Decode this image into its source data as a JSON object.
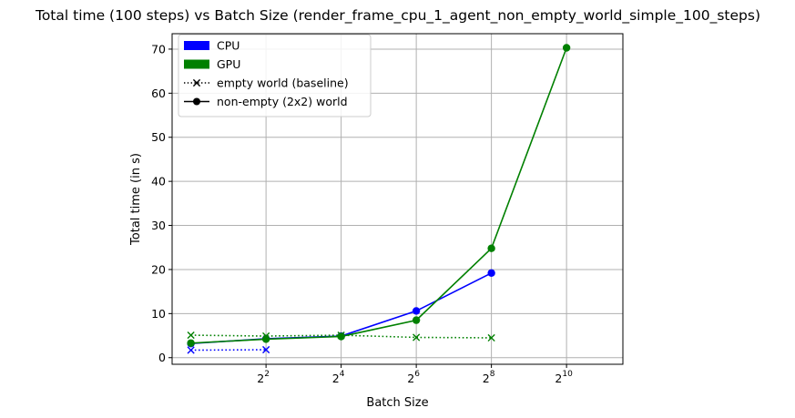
{
  "chart_data": {
    "type": "line",
    "title": "Total time (100 steps) vs Batch Size (render_frame_cpu_1_agent_non_empty_world_simple_100_steps)",
    "xlabel": "Batch Size",
    "ylabel": "Total time (in s)",
    "x_scale": "log2",
    "xlim_log2": [
      -0.5,
      11.5
    ],
    "ylim": [
      -1.5,
      73.5
    ],
    "x_ticks": [
      {
        "base": "2",
        "exp": "2",
        "value": 4
      },
      {
        "base": "2",
        "exp": "4",
        "value": 16
      },
      {
        "base": "2",
        "exp": "6",
        "value": 64
      },
      {
        "base": "2",
        "exp": "8",
        "value": 256
      },
      {
        "base": "2",
        "exp": "10",
        "value": 1024
      }
    ],
    "y_ticks": [
      0,
      10,
      20,
      30,
      40,
      50,
      60,
      70
    ],
    "grid": true,
    "legend_position": "upper-left",
    "legend": [
      {
        "label": "CPU",
        "kind": "patch",
        "color": "#0000ff"
      },
      {
        "label": "GPU",
        "kind": "patch",
        "color": "#008000"
      },
      {
        "label": "empty world (baseline)",
        "kind": "line-x",
        "color": "#000000"
      },
      {
        "label": "non-empty (2x2) world",
        "kind": "line-dot",
        "color": "#000000"
      }
    ],
    "series": [
      {
        "device": "CPU",
        "world": "non-empty",
        "color": "#0000ff",
        "linestyle": "solid",
        "marker": "o",
        "x": [
          1,
          4,
          16,
          64,
          256
        ],
        "y": [
          3.2,
          4.3,
          4.9,
          10.6,
          19.2
        ]
      },
      {
        "device": "GPU",
        "world": "non-empty",
        "color": "#008000",
        "linestyle": "solid",
        "marker": "o",
        "x": [
          1,
          4,
          16,
          64,
          256,
          1024
        ],
        "y": [
          3.3,
          4.2,
          4.8,
          8.5,
          24.8,
          70.3
        ]
      },
      {
        "device": "CPU",
        "world": "empty",
        "color": "#0000ff",
        "linestyle": "dotted",
        "marker": "x",
        "x": [
          1,
          4
        ],
        "y": [
          1.7,
          1.8
        ]
      },
      {
        "device": "GPU",
        "world": "empty",
        "color": "#008000",
        "linestyle": "dotted",
        "marker": "x",
        "x": [
          1,
          4,
          16,
          64,
          256
        ],
        "y": [
          5.1,
          4.9,
          5.1,
          4.6,
          4.5
        ]
      }
    ]
  }
}
